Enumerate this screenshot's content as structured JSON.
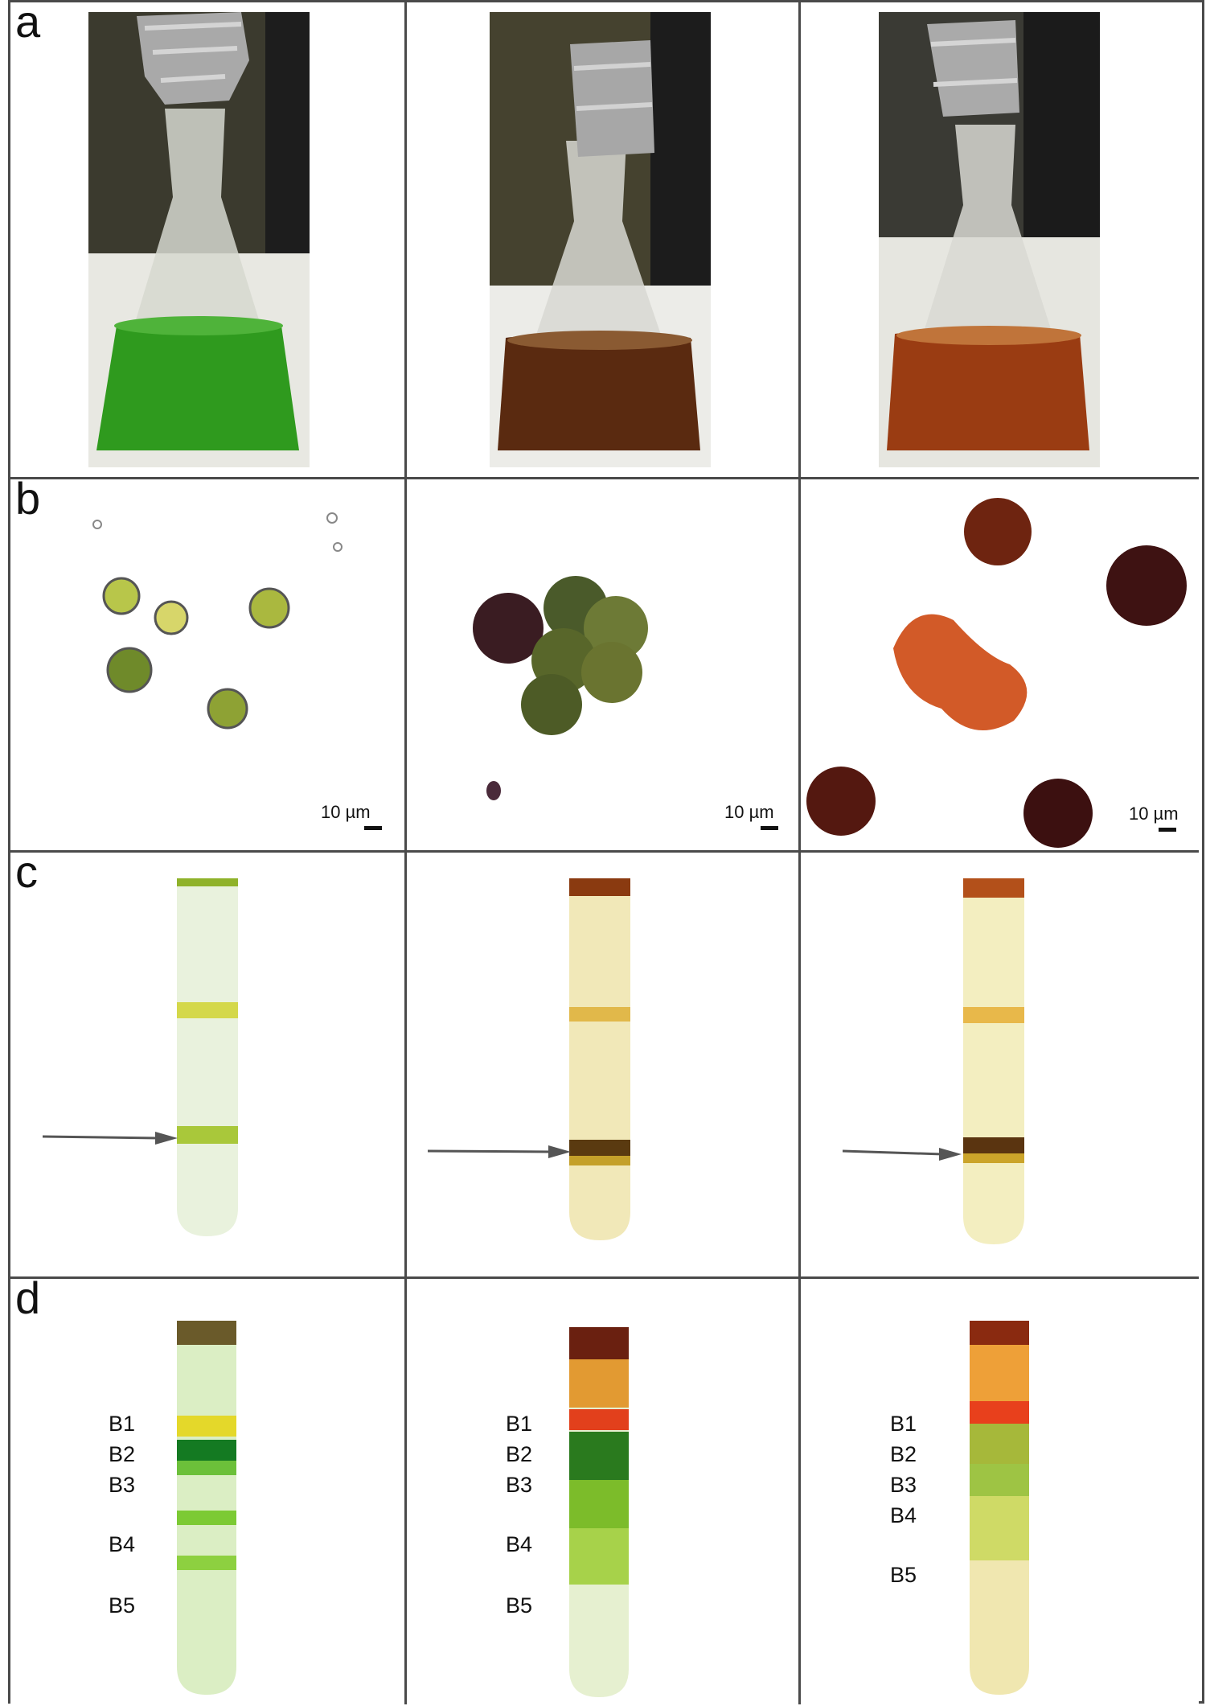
{
  "panels": {
    "a": {
      "letter": "a"
    },
    "b": {
      "letter": "b",
      "scale_label": "10 µm"
    },
    "c": {
      "letter": "c"
    },
    "d": {
      "letter": "d",
      "bands": [
        "B1",
        "B2",
        "B3",
        "B4",
        "B5"
      ]
    }
  },
  "colors": {
    "border": "#4a4a4a",
    "green_culture": "#2f9a1e",
    "brown_culture": "#5a2a10",
    "orange_culture": "#9a3c12"
  }
}
